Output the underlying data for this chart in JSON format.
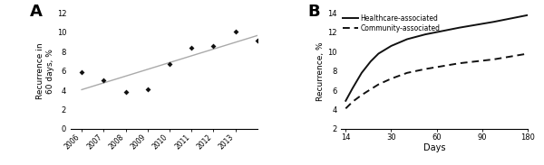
{
  "panel_A": {
    "label": "A",
    "years": [
      2006,
      2007,
      2008,
      2009,
      2010,
      2011,
      2012,
      2013,
      2014
    ],
    "values": [
      5.85,
      5.05,
      3.85,
      4.1,
      6.7,
      8.4,
      8.6,
      10.1,
      9.15
    ],
    "ylabel": "Recurrence in\n60 days, %",
    "ylim": [
      0,
      12
    ],
    "yticks": [
      0,
      2,
      4,
      6,
      8,
      10,
      12
    ],
    "xlim": [
      2005.5,
      2014.0
    ],
    "xticks": [
      2006,
      2007,
      2008,
      2009,
      2010,
      2011,
      2012,
      2013
    ],
    "trend_color": "#aaaaaa",
    "marker_color": "#111111"
  },
  "panel_B": {
    "label": "B",
    "xlabel": "Days",
    "ylabel": "Recurrence, %",
    "ylim": [
      2,
      14
    ],
    "yticks": [
      2,
      4,
      6,
      8,
      10,
      12,
      14
    ],
    "xtick_pos": [
      0,
      1,
      2,
      3,
      4
    ],
    "xtick_labels": [
      "14",
      "30",
      "60",
      "90",
      "180"
    ],
    "hca_x": [
      0,
      0.15,
      0.35,
      0.55,
      0.72,
      1.0,
      1.35,
      1.75,
      2.5,
      3.25,
      4.0
    ],
    "hca_vals": [
      4.9,
      6.2,
      7.8,
      9.0,
      9.8,
      10.6,
      11.3,
      11.8,
      12.5,
      13.1,
      13.8
    ],
    "ca_x": [
      0,
      0.15,
      0.35,
      0.55,
      0.72,
      1.0,
      1.35,
      1.75,
      2.5,
      3.25,
      4.0
    ],
    "ca_vals": [
      4.1,
      4.8,
      5.5,
      6.1,
      6.6,
      7.2,
      7.8,
      8.2,
      8.8,
      9.2,
      9.8
    ],
    "hca_label": "Healthcare-associated",
    "ca_label": "Community-associated",
    "line_color": "#111111"
  }
}
